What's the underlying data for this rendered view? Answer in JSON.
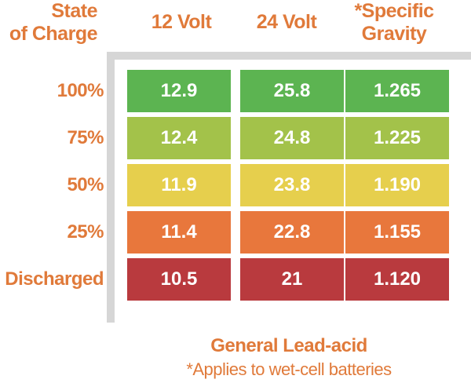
{
  "chart_data": {
    "type": "table",
    "header": {
      "state_line1": "State",
      "state_line2": "of Charge",
      "col_12v": "12 Volt",
      "col_24v": "24 Volt",
      "col_sg_line1": "*Specific",
      "col_sg_line2": "Gravity"
    },
    "rows": [
      {
        "label": "100%",
        "v12": "12.9",
        "v24": "25.8",
        "sg": "1.265",
        "color": "#5cb451"
      },
      {
        "label": "75%",
        "v12": "12.4",
        "v24": "24.8",
        "sg": "1.225",
        "color": "#a3c24a"
      },
      {
        "label": "50%",
        "v12": "11.9",
        "v24": "23.8",
        "sg": "1.190",
        "color": "#e6cf4d"
      },
      {
        "label": "25%",
        "v12": "11.4",
        "v24": "22.8",
        "sg": "1.155",
        "color": "#e8773c"
      },
      {
        "label": "Discharged",
        "v12": "10.5",
        "v24": "21",
        "sg": "1.120",
        "color": "#b93a3e"
      }
    ],
    "footer_title": "General Lead-acid",
    "footer_note": "*Applies to wet-cell batteries",
    "label_color": "#e07a3a",
    "frame_color": "#d6d6d6"
  }
}
